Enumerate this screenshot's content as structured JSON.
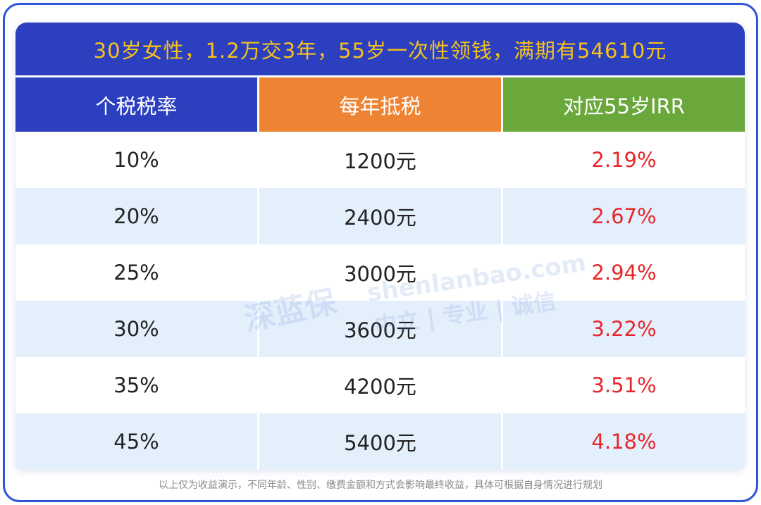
{
  "title": "30岁女性，1.2万交3年，55岁一次性领钱，满期有54610元",
  "table": {
    "headers": [
      "个税税率",
      "每年抵税",
      "对应55岁IRR"
    ],
    "rows": [
      [
        "10%",
        "1200元",
        "2.19%"
      ],
      [
        "20%",
        "2400元",
        "2.67%"
      ],
      [
        "25%",
        "3000元",
        "2.94%"
      ],
      [
        "30%",
        "3600元",
        "3.22%"
      ],
      [
        "35%",
        "4200元",
        "3.51%"
      ],
      [
        "45%",
        "5400元",
        "4.18%"
      ]
    ]
  },
  "watermark": {
    "brand": "深蓝保",
    "site": "shenlanbao.com",
    "slogan": "中立 | 专业 | 诚信"
  },
  "footer": "以上仅为收益演示，不同年龄、性别、缴费金额和方式会影响最终收益，具体可根据自身情况进行规划"
}
